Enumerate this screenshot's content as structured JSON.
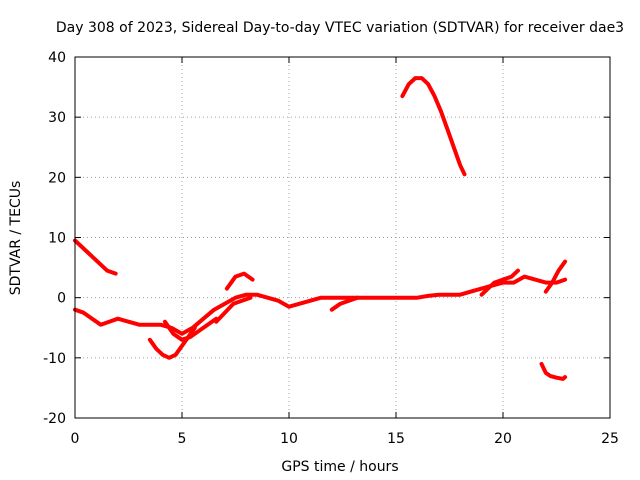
{
  "chart_data": {
    "type": "line",
    "title": "Day 308 of 2023, Sidereal Day-to-day VTEC variation (SDTVAR) for receiver dae3",
    "xlabel": "GPS time / hours",
    "ylabel": "SDTVAR / TECUs",
    "xlim": [
      0,
      25
    ],
    "ylim": [
      -20,
      40
    ],
    "xticks": [
      0,
      5,
      10,
      15,
      20,
      25
    ],
    "yticks": [
      -20,
      -10,
      0,
      10,
      20,
      30,
      40
    ],
    "grid": true,
    "series_color": "#ff0000",
    "series": [
      {
        "name": "segment-1",
        "x": [
          0.0,
          0.4,
          0.8,
          1.2,
          1.6,
          2.0,
          2.5,
          3.0,
          3.5,
          4.0,
          4.5,
          5.0,
          5.5,
          6.0,
          6.5,
          7.0,
          7.5,
          8.0,
          8.5,
          9.0,
          9.5,
          10.0,
          10.5,
          11.0,
          11.5,
          12.0,
          12.5,
          13.0,
          13.5,
          14.0,
          14.5,
          15.0,
          15.5,
          16.0,
          16.5,
          17.0,
          17.5,
          18.0,
          18.5,
          19.0,
          19.5,
          20.0,
          20.5,
          21.0,
          21.5,
          22.0,
          22.5,
          22.9
        ],
        "y": [
          -2,
          -2.5,
          -3.5,
          -4.5,
          -4,
          -3.5,
          -4,
          -4.5,
          -4.5,
          -4.5,
          -5,
          -6,
          -5,
          -3.5,
          -2,
          -1,
          0,
          0.5,
          0.5,
          0,
          -0.5,
          -1.5,
          -1,
          -0.5,
          0,
          0,
          0,
          0,
          0,
          0,
          0,
          0,
          0,
          0,
          0.3,
          0.5,
          0.5,
          0.5,
          1,
          1.5,
          2,
          2.5,
          2.5,
          3.5,
          3,
          2.5,
          2.5,
          3
        ]
      },
      {
        "name": "segment-2",
        "x": [
          0.0,
          0.3,
          0.6,
          0.9,
          1.2,
          1.5,
          1.9
        ],
        "y": [
          9.5,
          8.5,
          7.5,
          6.5,
          5.5,
          4.5,
          4
        ]
      },
      {
        "name": "segment-3",
        "x": [
          3.5,
          3.8,
          4.1,
          4.4,
          4.7,
          5.0,
          5.3,
          5.6
        ],
        "y": [
          -7,
          -8.5,
          -9.5,
          -10,
          -9.5,
          -8,
          -6.5,
          -5
        ]
      },
      {
        "name": "segment-4",
        "x": [
          4.2,
          4.6,
          5.0,
          5.4,
          5.8,
          6.2,
          6.6
        ],
        "y": [
          -4,
          -6,
          -7,
          -6.5,
          -5.5,
          -4.5,
          -3.5
        ]
      },
      {
        "name": "segment-5",
        "x": [
          7.1,
          7.5,
          7.9,
          8.3
        ],
        "y": [
          1.5,
          3.5,
          4,
          3
        ]
      },
      {
        "name": "segment-6",
        "x": [
          6.6,
          7.0,
          7.4,
          7.8,
          8.2
        ],
        "y": [
          -4,
          -2.5,
          -1,
          -0.5,
          0
        ]
      },
      {
        "name": "segment-7",
        "x": [
          12.0,
          12.4,
          12.8,
          13.2
        ],
        "y": [
          -2,
          -1,
          -0.5,
          0
        ]
      },
      {
        "name": "segment-8",
        "x": [
          19.0,
          19.3,
          19.6,
          20.0,
          20.4,
          20.7
        ],
        "y": [
          0.5,
          1.5,
          2.5,
          3,
          3.5,
          4.5
        ]
      },
      {
        "name": "segment-9",
        "x": [
          22.0,
          22.3,
          22.6,
          22.9
        ],
        "y": [
          1,
          2.5,
          4.5,
          6
        ]
      },
      {
        "name": "segment-10",
        "x": [
          15.3,
          15.6,
          15.9,
          16.2,
          16.5,
          16.8,
          17.1,
          17.4,
          17.7,
          18.0,
          18.2
        ],
        "y": [
          33.5,
          35.5,
          36.5,
          36.5,
          35.5,
          33.5,
          31,
          28,
          25,
          22,
          20.5
        ]
      },
      {
        "name": "segment-11",
        "x": [
          21.8,
          22.0,
          22.2,
          22.5,
          22.8,
          22.9
        ],
        "y": [
          -11,
          -12.5,
          -13,
          -13.3,
          -13.5,
          -13.2
        ]
      }
    ]
  }
}
